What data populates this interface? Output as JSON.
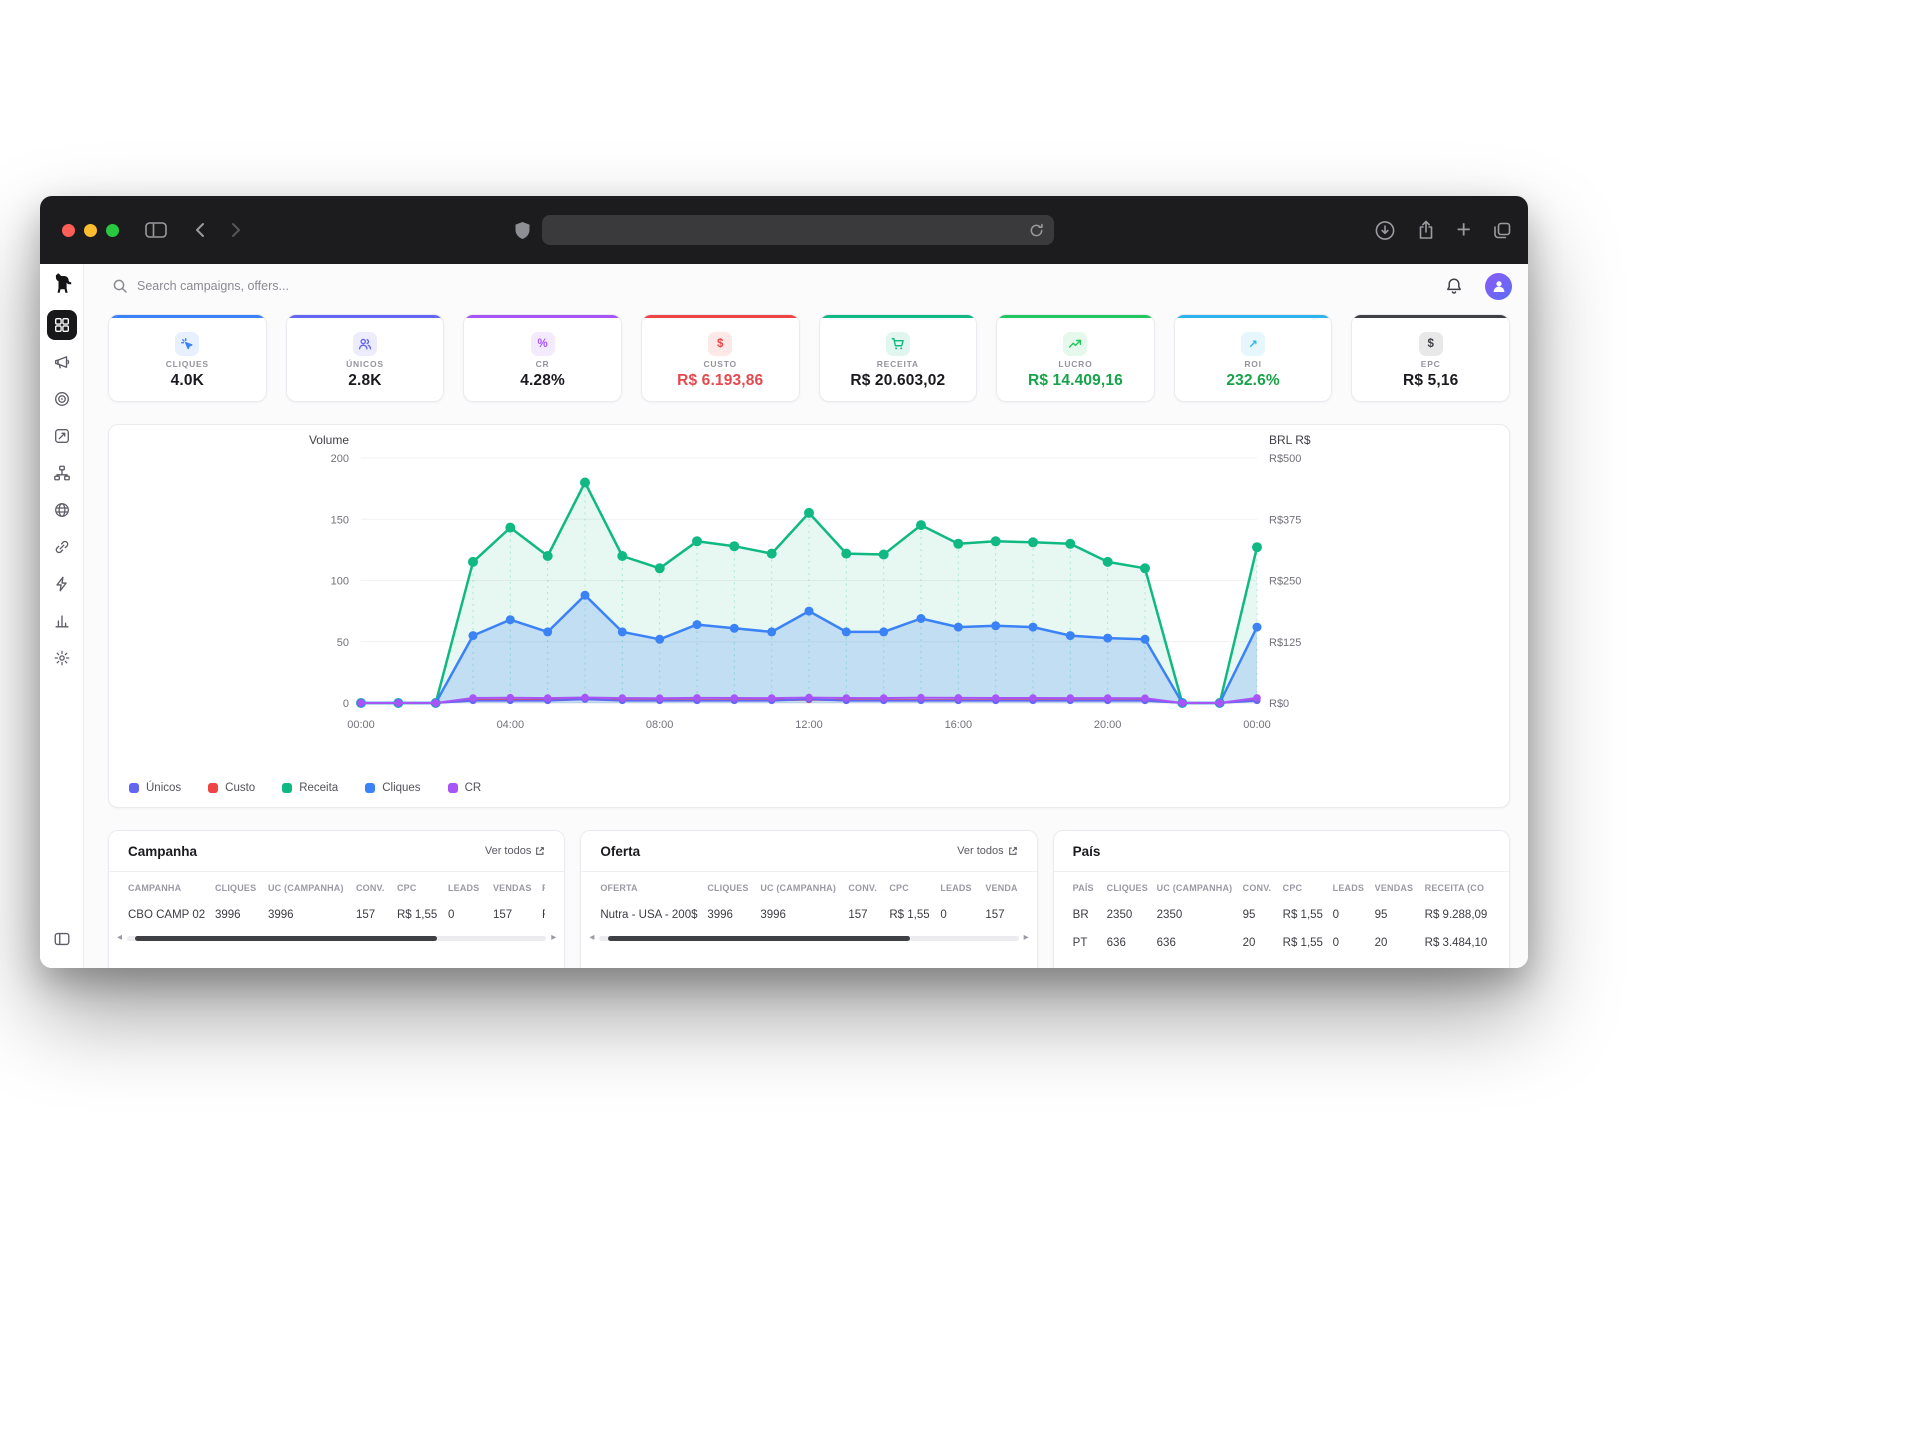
{
  "browser": {
    "url_value": ""
  },
  "icons": {
    "plus": "+",
    "percent": "%",
    "dollar": "$",
    "arrow_up_right": "↗",
    "scroll_left": "◂",
    "scroll_right": "▸"
  },
  "header": {
    "search_placeholder": "Search campaigns, offers..."
  },
  "kpis": [
    {
      "label": "CLIQUES",
      "value": "4.0K",
      "accent": "#3b82f6",
      "value_color": "#1a1a20"
    },
    {
      "label": "ÚNICOS",
      "value": "2.8K",
      "accent": "#6366f1",
      "value_color": "#1a1a20"
    },
    {
      "label": "CR",
      "value": "4.28%",
      "accent": "#a855f7",
      "value_color": "#1a1a20"
    },
    {
      "label": "CUSTO",
      "value": "R$ 6.193,86",
      "accent": "#ef4444",
      "value_color": "#e5484d"
    },
    {
      "label": "RECEITA",
      "value": "R$ 20.603,02",
      "accent": "#10b981",
      "value_color": "#1a1a20"
    },
    {
      "label": "LUCRO",
      "value": "R$ 14.409,16",
      "accent": "#22c55e",
      "value_color": "#16a34a"
    },
    {
      "label": "ROI",
      "value": "232.6%",
      "accent": "#2fb3ef",
      "value_color": "#16a34a"
    },
    {
      "label": "EPC",
      "value": "R$ 5,16",
      "accent": "#3f3f46",
      "value_color": "#1a1a20"
    }
  ],
  "chart_data": {
    "type": "area",
    "title": "",
    "left_axis": {
      "label": "Volume",
      "min": 0,
      "max": 200,
      "ticks": [
        0,
        50,
        100,
        150,
        200
      ]
    },
    "right_axis": {
      "label": "BRL R$",
      "min": 0,
      "max": 500,
      "tick_values": [
        0,
        125,
        250,
        375,
        500
      ],
      "tick_labels": [
        "R$0",
        "R$125",
        "R$250",
        "R$375",
        "R$500"
      ]
    },
    "x_hours": [
      0,
      1,
      2,
      3,
      4,
      5,
      6,
      7,
      8,
      9,
      10,
      11,
      12,
      13,
      14,
      15,
      16,
      17,
      18,
      19,
      20,
      21,
      22,
      23,
      24
    ],
    "x_tick_hours": [
      0,
      4,
      8,
      12,
      16,
      20,
      24
    ],
    "x_tick_labels": [
      "00:00",
      "04:00",
      "08:00",
      "12:00",
      "16:00",
      "20:00",
      "00:00"
    ],
    "grid": true,
    "legend_position": "bottom-left",
    "series": [
      {
        "name": "Únicos",
        "color": "#6366f1",
        "axis": "left",
        "area": false,
        "values": [
          0,
          0,
          0,
          2,
          2,
          2,
          3,
          2,
          2,
          2,
          2,
          2,
          3,
          2,
          2,
          2,
          2,
          2,
          2,
          2,
          2,
          2,
          0,
          0,
          2
        ]
      },
      {
        "name": "Custo",
        "color": "#ef4444",
        "axis": "right",
        "area": false,
        "values": [
          0,
          0,
          0,
          6,
          7,
          6,
          8,
          6,
          6,
          6,
          6,
          6,
          7,
          6,
          6,
          6,
          6,
          6,
          6,
          6,
          6,
          6,
          0,
          0,
          6
        ]
      },
      {
        "name": "Receita",
        "color": "#10b981",
        "fill": "rgba(16,185,129,0.10)",
        "axis": "right",
        "area": true,
        "values": [
          0,
          0,
          0,
          288,
          358,
          300,
          450,
          300,
          275,
          330,
          320,
          305,
          388,
          305,
          303,
          363,
          325,
          330,
          328,
          325,
          288,
          275,
          0,
          0,
          318
        ]
      },
      {
        "name": "Cliques",
        "color": "#3b82f6",
        "fill": "rgba(59,130,246,0.22)",
        "axis": "left",
        "area": true,
        "values": [
          0,
          0,
          0,
          55,
          68,
          58,
          88,
          58,
          52,
          64,
          61,
          58,
          75,
          58,
          58,
          69,
          62,
          63,
          62,
          55,
          53,
          52,
          0,
          0,
          62
        ]
      },
      {
        "name": "CR",
        "color": "#a855f7",
        "axis": "left",
        "area": false,
        "values": [
          0,
          0,
          0,
          4.1,
          4.3,
          4,
          4.5,
          4,
          3.9,
          4.2,
          4.1,
          4,
          4.4,
          4.1,
          4,
          4.3,
          4.2,
          4.1,
          4.1,
          4,
          4,
          3.9,
          0,
          0,
          4.2
        ]
      }
    ]
  },
  "tables": {
    "campanha": {
      "title": "Campanha",
      "link": "Ver todos",
      "headers": [
        "CAMPANHA",
        "CLIQUES",
        "UC (CAMPANHA)",
        "CONV.",
        "CPC",
        "LEADS",
        "VENDAS",
        "R"
      ],
      "rows": [
        [
          "CBO CAMP 02",
          "3996",
          "3996",
          "157",
          "R$ 1,55",
          "0",
          "157",
          "R"
        ]
      ]
    },
    "oferta": {
      "title": "Oferta",
      "link": "Ver todos",
      "headers": [
        "OFERTA",
        "CLIQUES",
        "UC (CAMPANHA)",
        "CONV.",
        "CPC",
        "LEADS",
        "VENDAS"
      ],
      "rows": [
        [
          "Nutra - USA - 200$",
          "3996",
          "3996",
          "157",
          "R$ 1,55",
          "0",
          "157"
        ]
      ]
    },
    "pais": {
      "title": "País",
      "headers": [
        "PAÍS",
        "CLIQUES",
        "UC (CAMPANHA)",
        "CONV.",
        "CPC",
        "LEADS",
        "VENDAS",
        "RECEITA (CO"
      ],
      "rows": [
        [
          "BR",
          "2350",
          "2350",
          "95",
          "R$ 1,55",
          "0",
          "95",
          "R$ 9.288,09"
        ],
        [
          "PT",
          "636",
          "636",
          "20",
          "R$ 1,55",
          "0",
          "20",
          "R$ 3.484,10"
        ]
      ]
    }
  }
}
